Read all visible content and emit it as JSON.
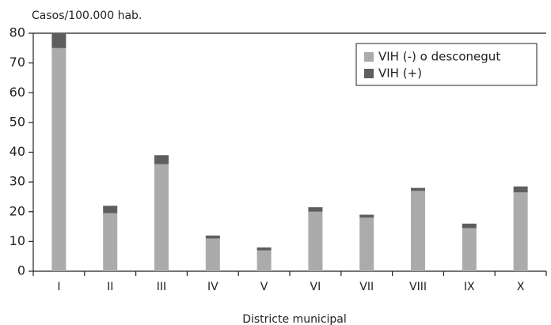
{
  "chart_data": {
    "type": "stacked_bar",
    "y_label": "Casos/100.000 hab.",
    "x_label": "Districte municipal",
    "categories": [
      "I",
      "II",
      "III",
      "IV",
      "V",
      "VI",
      "VII",
      "VIII",
      "IX",
      "X"
    ],
    "series": [
      {
        "name": "VIH (-) o desconegut",
        "color": "#ababab",
        "values": [
          75,
          19.5,
          36,
          11,
          7,
          20,
          18,
          27,
          14.5,
          26.5
        ]
      },
      {
        "name": "VIH (+)",
        "color": "#5e5e5e",
        "values": [
          5,
          2.5,
          3,
          1,
          1,
          1.5,
          1,
          1,
          1.5,
          2
        ]
      }
    ],
    "ylim": [
      0,
      80
    ],
    "yticks": [
      0,
      10,
      20,
      30,
      40,
      50,
      60,
      70,
      80
    ],
    "legend": "top-right"
  }
}
